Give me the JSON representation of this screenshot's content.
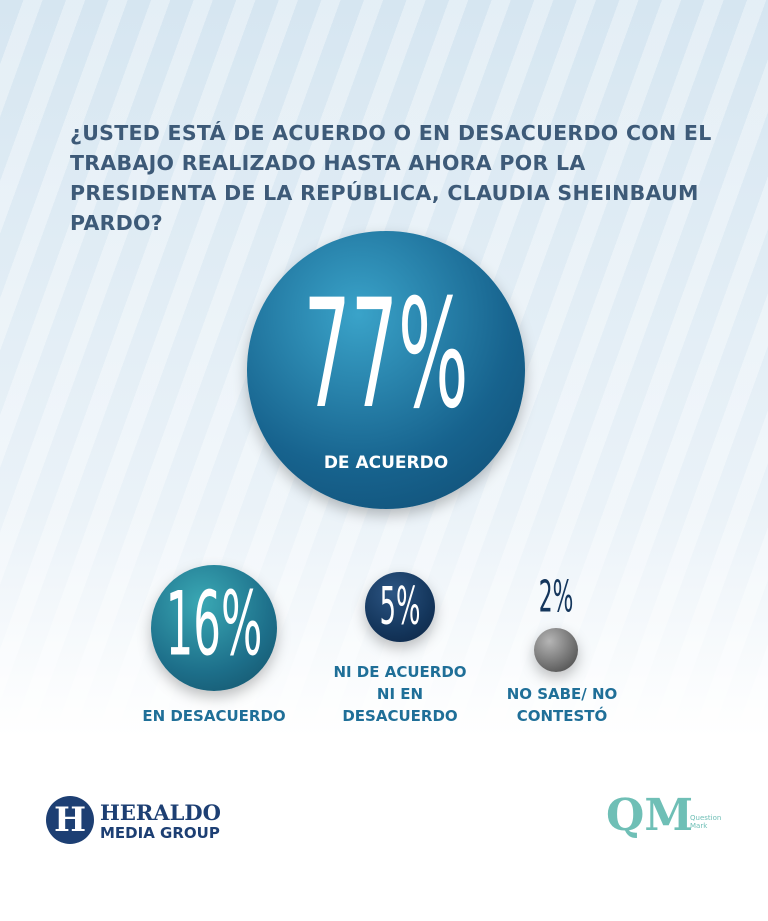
{
  "chart_data": {
    "type": "bubble",
    "title": "¿USTED ESTÁ DE ACUERDO O EN DESACUERDO CON EL TRABAJO REALIZADO HASTA AHORA POR LA PRESIDENTA DE LA REPÚBLICA, CLAUDIA SHEINBAUM PARDO?",
    "categories": [
      "DE ACUERDO",
      "EN DESACUERDO",
      "NI DE ACUERDO NI EN DESACUERDO",
      "NO SABE/ NO CONTESTÓ"
    ],
    "values": [
      77,
      16,
      5,
      2
    ],
    "value_labels": [
      "77%",
      "16%",
      "5%",
      "2%"
    ],
    "colors": [
      "#1a6f98",
      "#1f7f95",
      "#14365c",
      "#6f6f6f"
    ]
  },
  "logos": {
    "heraldo": "HERALDO",
    "heraldo_sub": "MEDIA GROUP",
    "qm": "QM",
    "qm_sub": "Question Mark"
  }
}
